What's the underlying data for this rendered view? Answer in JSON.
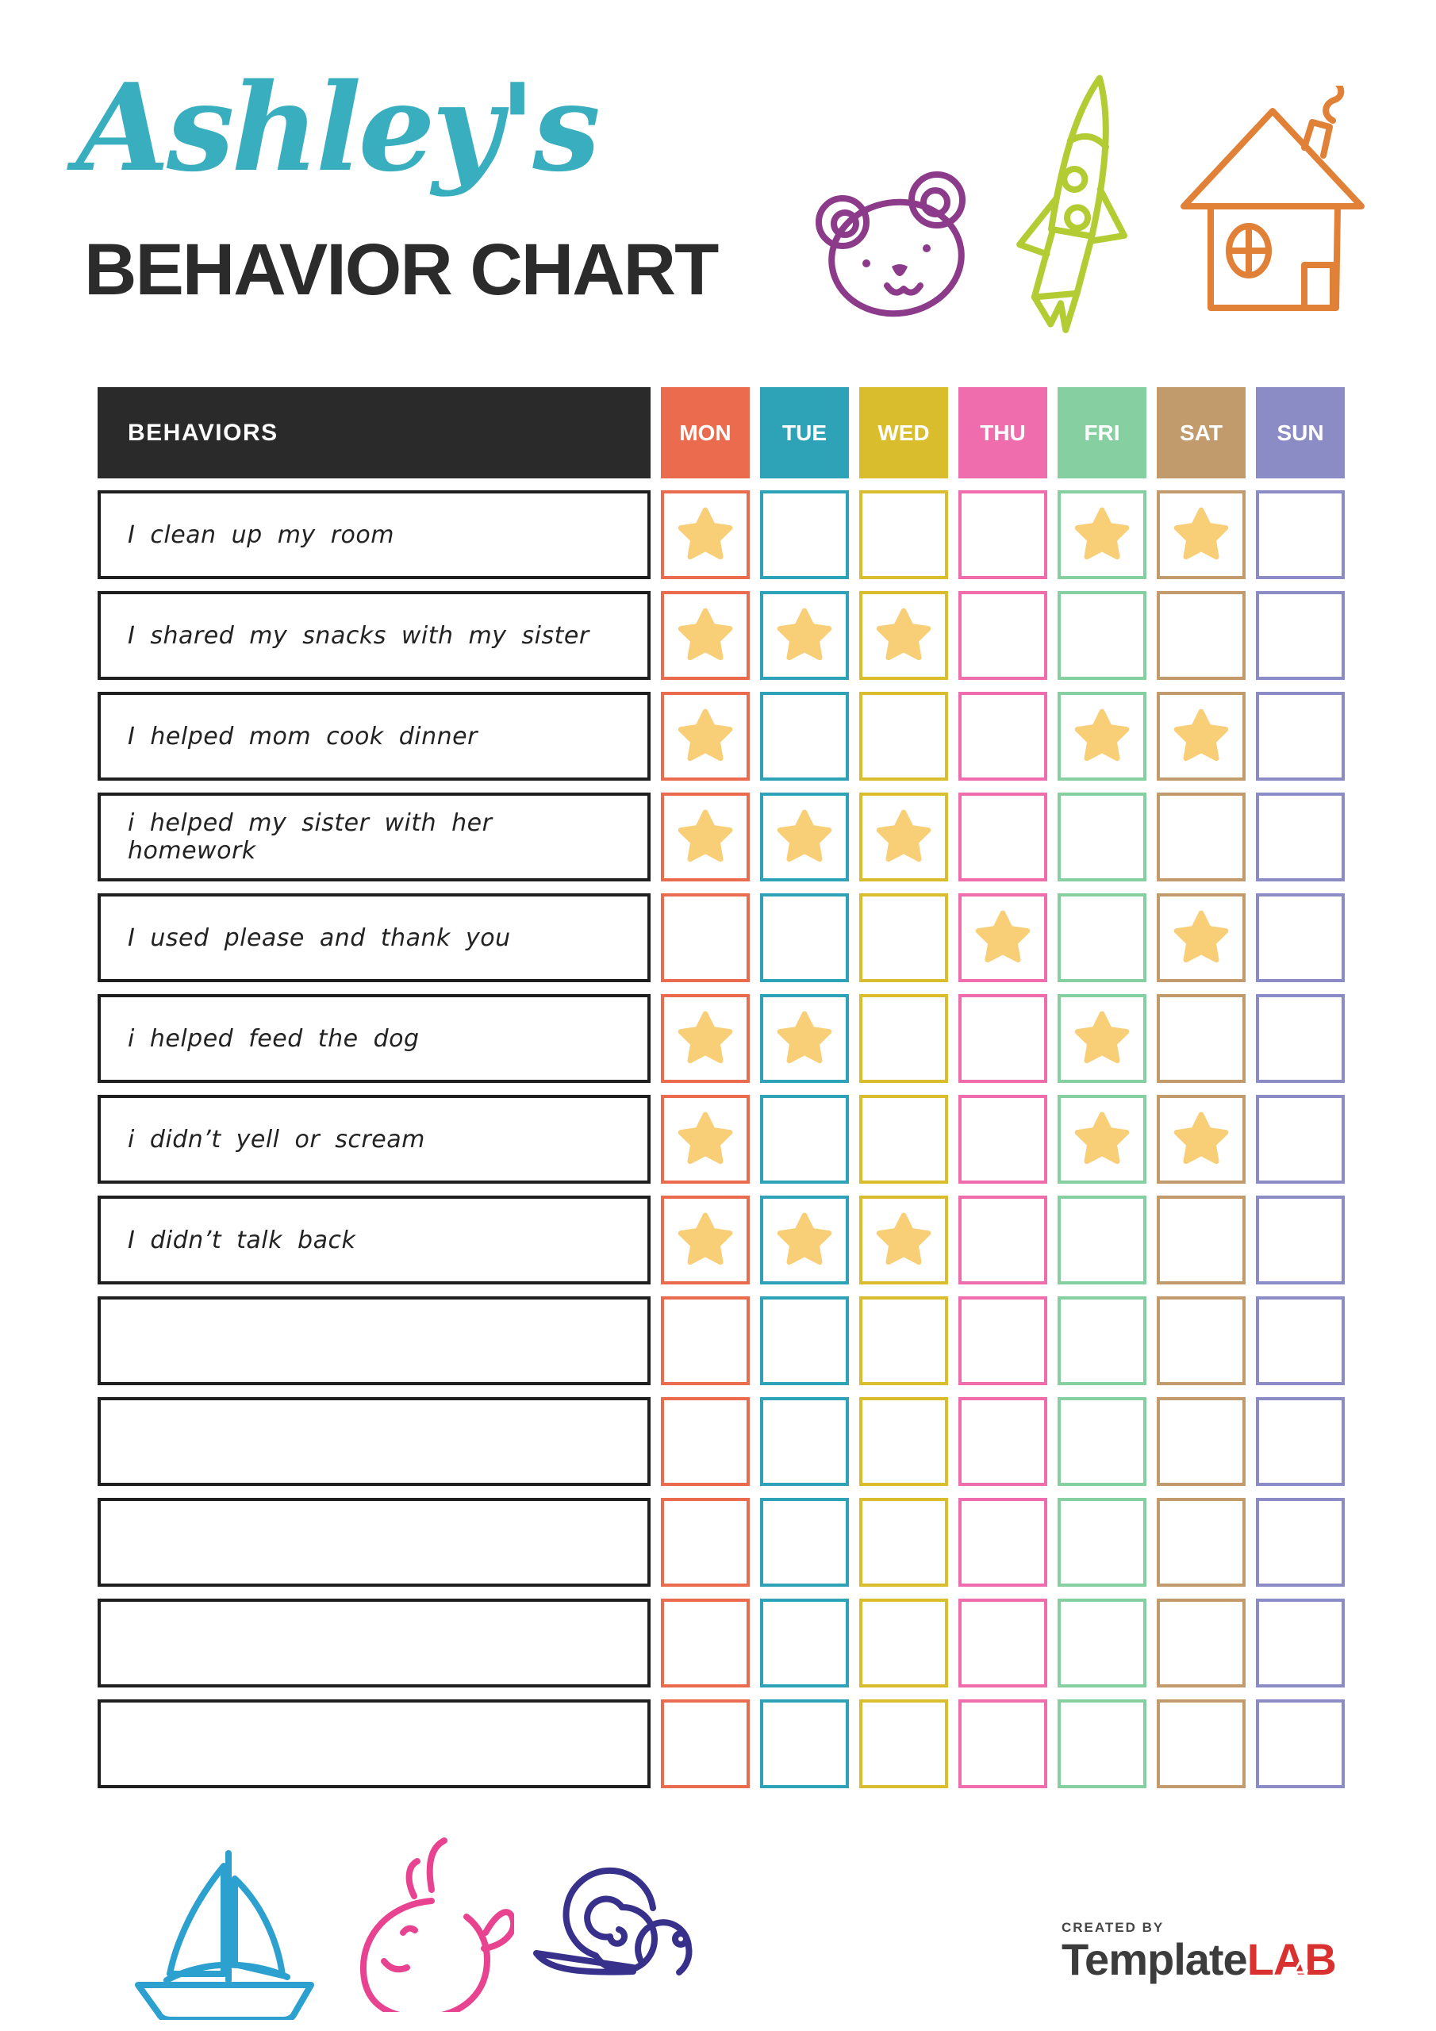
{
  "title": {
    "name": "Ashley's",
    "name_color": "#38AEBE",
    "subtitle": "BEHAVIOR CHART"
  },
  "doodles": {
    "bear_color": "#8C3A8A",
    "rocket_color": "#B4CC34",
    "house_color": "#E08137",
    "sailboat_color": "#2CA0CF",
    "whale_color": "#E84390",
    "snail_color": "#37318C"
  },
  "table": {
    "behaviors_header": "BEHAVIORS",
    "days": [
      {
        "label": "MON",
        "color": "#EB6B4E"
      },
      {
        "label": "TUE",
        "color": "#2EA3B7"
      },
      {
        "label": "WED",
        "color": "#D9BD2C"
      },
      {
        "label": "THU",
        "color": "#F06DAD"
      },
      {
        "label": "FRI",
        "color": "#85CFA0"
      },
      {
        "label": "SAT",
        "color": "#C19B6B"
      },
      {
        "label": "SUN",
        "color": "#8B8BC6"
      }
    ],
    "star_color": "#F8CE77",
    "rows": [
      {
        "label": "I clean up my room",
        "stars": [
          1,
          0,
          0,
          0,
          1,
          1,
          0
        ]
      },
      {
        "label": "I shared my snacks with my sister",
        "stars": [
          1,
          1,
          1,
          0,
          0,
          0,
          0
        ]
      },
      {
        "label": "I helped mom cook dinner",
        "stars": [
          1,
          0,
          0,
          0,
          1,
          1,
          0
        ]
      },
      {
        "label": "i helped my sister with her homework",
        "stars": [
          1,
          1,
          1,
          0,
          0,
          0,
          0
        ]
      },
      {
        "label": "I used please and thank you",
        "stars": [
          0,
          0,
          0,
          1,
          0,
          1,
          0
        ]
      },
      {
        "label": "i helped feed the dog",
        "stars": [
          1,
          1,
          0,
          0,
          1,
          0,
          0
        ]
      },
      {
        "label": "i didn’t yell or scream",
        "stars": [
          1,
          0,
          0,
          0,
          1,
          1,
          0
        ]
      },
      {
        "label": "I didn’t talk back",
        "stars": [
          1,
          1,
          1,
          0,
          0,
          0,
          0
        ]
      },
      {
        "label": "",
        "stars": [
          0,
          0,
          0,
          0,
          0,
          0,
          0
        ]
      },
      {
        "label": "",
        "stars": [
          0,
          0,
          0,
          0,
          0,
          0,
          0
        ]
      },
      {
        "label": "",
        "stars": [
          0,
          0,
          0,
          0,
          0,
          0,
          0
        ]
      },
      {
        "label": "",
        "stars": [
          0,
          0,
          0,
          0,
          0,
          0,
          0
        ]
      },
      {
        "label": "",
        "stars": [
          0,
          0,
          0,
          0,
          0,
          0,
          0
        ]
      }
    ]
  },
  "footer": {
    "created_by": "CREATED BY",
    "brand_part1": "Template",
    "brand_part2": "LAB"
  }
}
